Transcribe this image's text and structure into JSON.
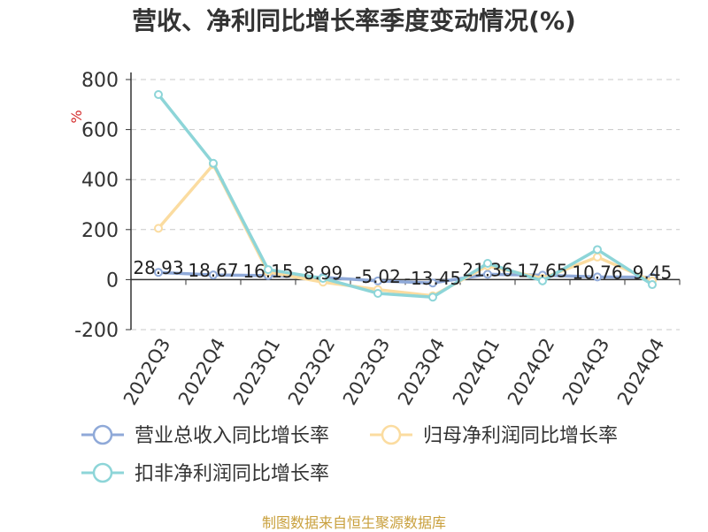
{
  "chart_data": {
    "type": "line",
    "title": "营收、净利同比增长率季度变动情况(%)",
    "ylabel": "%",
    "categories": [
      "2022Q3",
      "2022Q4",
      "2023Q1",
      "2023Q2",
      "2023Q3",
      "2023Q4",
      "2024Q1",
      "2024Q2",
      "2024Q3",
      "2024Q4"
    ],
    "yticks": [
      "800",
      "600",
      "400",
      "200",
      "0",
      "-200"
    ],
    "ylim": [
      -200,
      800
    ],
    "grid": true,
    "legend_position": "bottom",
    "series": [
      {
        "name": "营业总收入同比增长率",
        "color": "#8fa9d8",
        "values": [
          28.93,
          18.67,
          16.15,
          8.99,
          -5.02,
          -13.45,
          21.36,
          17.65,
          10.76,
          9.45
        ],
        "labels": [
          "28.93",
          "18.67",
          "16.15",
          "8.99",
          "-5.02",
          "-13.45",
          "21.36",
          "17.65",
          "10.76",
          "9.45"
        ]
      },
      {
        "name": "归母净利润同比增长率",
        "color": "#fbdca0",
        "values": [
          205,
          460,
          30,
          -10,
          -40,
          -65,
          55,
          5,
          90,
          -5
        ]
      },
      {
        "name": "扣非净利润同比增长率",
        "color": "#8dd5d8",
        "values": [
          740,
          465,
          40,
          5,
          -55,
          -70,
          65,
          -5,
          120,
          -20
        ]
      }
    ]
  },
  "footer": {
    "source": "制图数据来自恒生聚源数据库"
  }
}
